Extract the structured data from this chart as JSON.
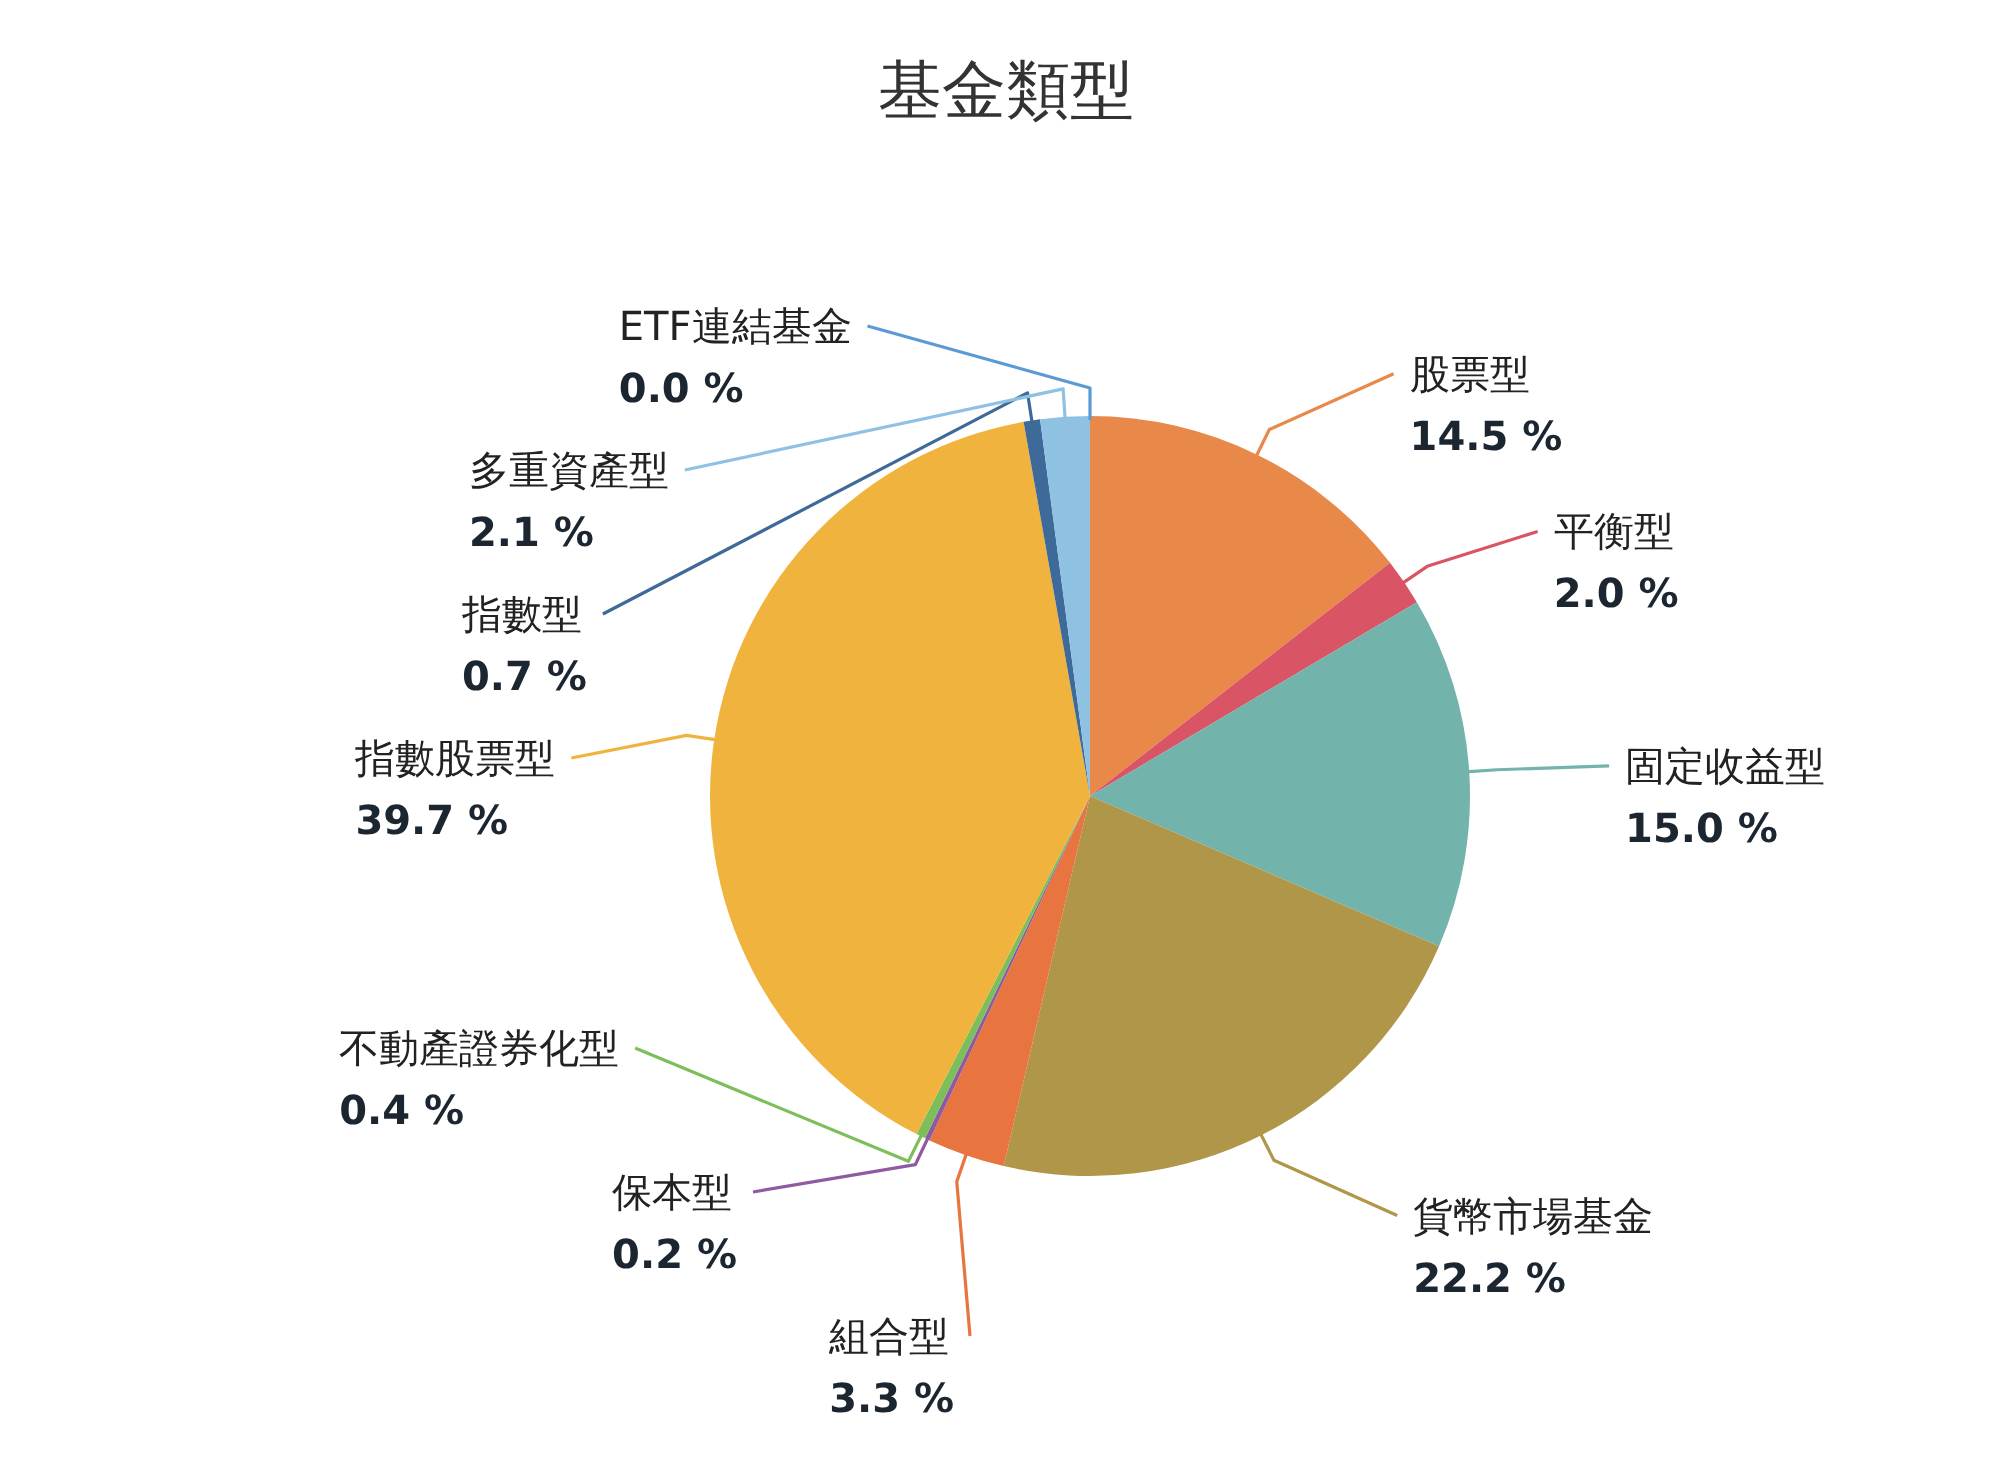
{
  "chart_data": {
    "type": "pie",
    "title": "基金類型",
    "categories": [
      "股票型",
      "平衡型",
      "固定收益型",
      "貨幣市場基金",
      "組合型",
      "保本型",
      "不動產證券化型",
      "指數股票型",
      "指數型",
      "多重資產型",
      "ETF連結基金"
    ],
    "values": [
      14.5,
      2.0,
      15.0,
      22.2,
      3.3,
      0.2,
      0.4,
      39.7,
      0.7,
      2.1,
      0.0
    ],
    "colors": [
      "#e8894a",
      "#d95464",
      "#72b3ab",
      "#b09649",
      "#e8743f",
      "#8e5aa0",
      "#7cbf5a",
      "#f0b43e",
      "#3d6a99",
      "#8fc1e3",
      "#5b9bd5"
    ],
    "value_labels": [
      "14.5 %",
      "2.0 %",
      "15.0 %",
      "22.2 %",
      "3.3 %",
      "0.2 %",
      "0.4 %",
      "39.7 %",
      "0.7 %",
      "2.1 %",
      "0.0 %"
    ]
  }
}
